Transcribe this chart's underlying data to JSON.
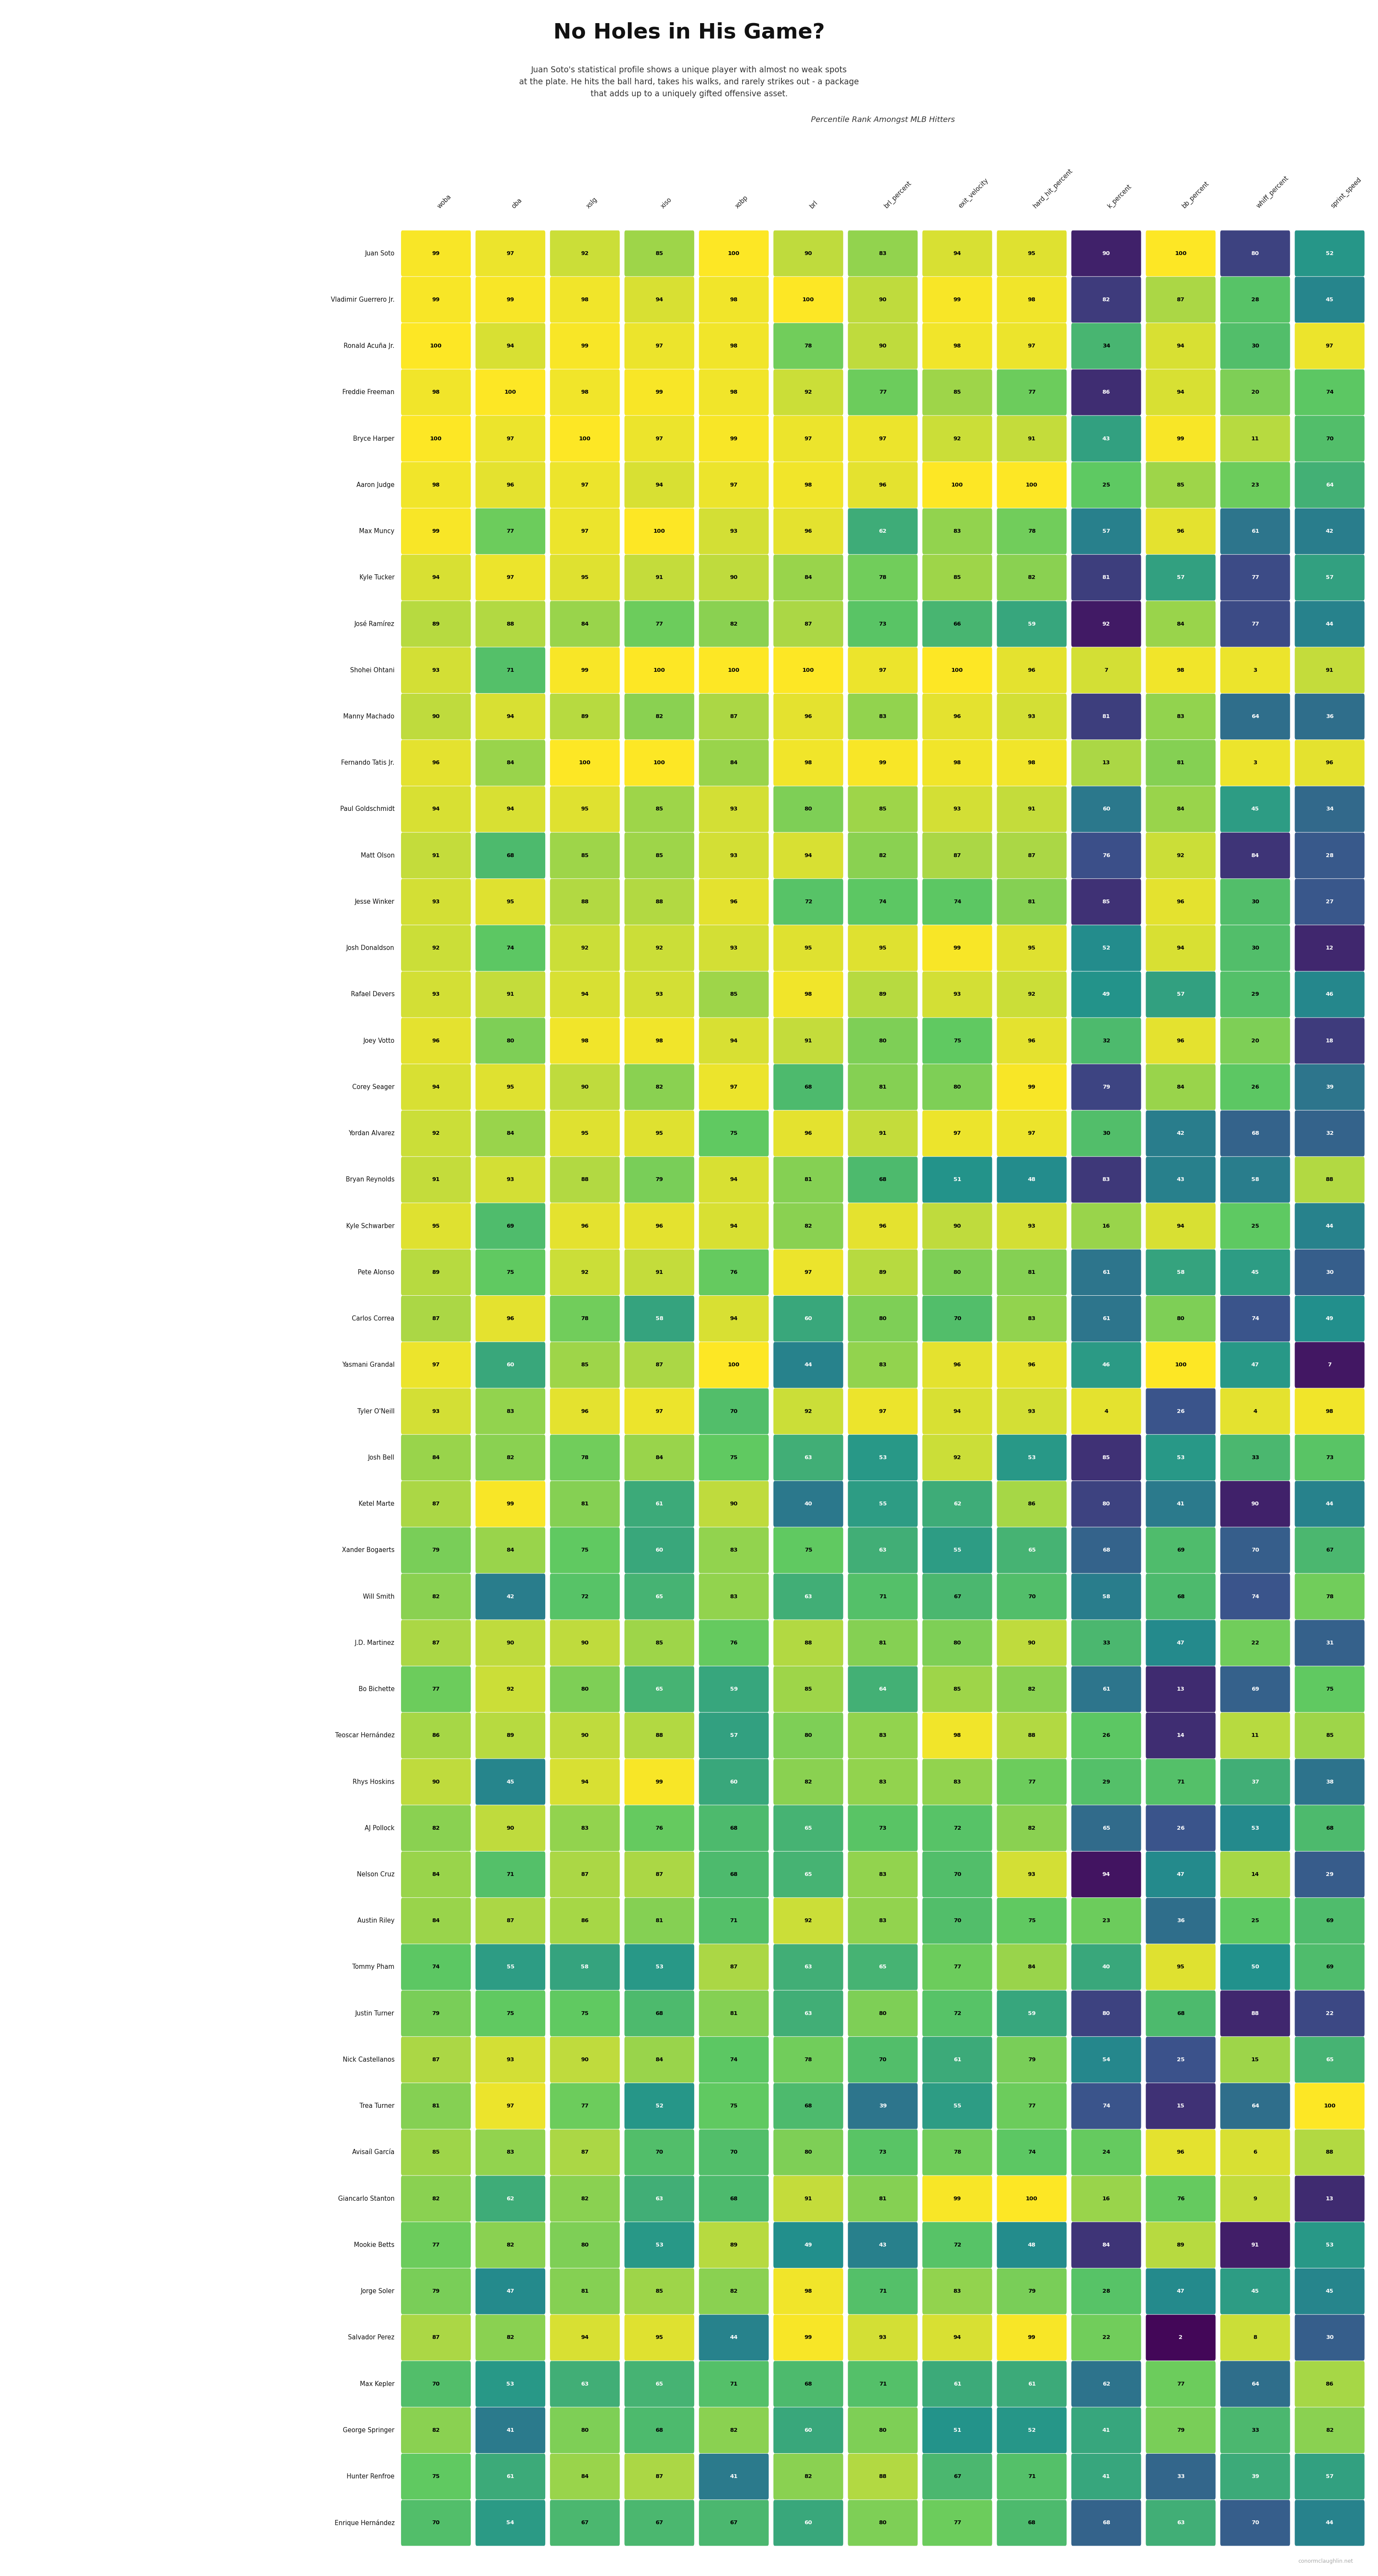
{
  "title": "No Holes in His Game?",
  "subtitle": "Juan Soto's statistical profile shows a unique player with almost no weak spots\nat the plate. He hits the ball hard, takes his walks, and rarely strikes out - a package\nthat adds up to a uniquely gifted offensive asset.",
  "col_header_label": "Percentile Rank Amongst MLB Hitters",
  "columns": [
    "woba",
    "oba",
    "xslg",
    "xiso",
    "xobp",
    "brl",
    "brl_percent",
    "exit_velocity",
    "hard_hit_percent",
    "k_percent",
    "bb_percent",
    "whiff_percent",
    "sprint_speed"
  ],
  "players": [
    "Juan Soto",
    "Vladimir Guerrero Jr.",
    "Ronald Acuña Jr.",
    "Freddie Freeman",
    "Bryce Harper",
    "Aaron Judge",
    "Max Muncy",
    "Kyle Tucker",
    "José Ramírez",
    "Shohei Ohtani",
    "Manny Machado",
    "Fernando Tatis Jr.",
    "Paul Goldschmidt",
    "Matt Olson",
    "Jesse Winker",
    "Josh Donaldson",
    "Rafael Devers",
    "Joey Votto",
    "Corey Seager",
    "Yordan Alvarez",
    "Bryan Reynolds",
    "Kyle Schwarber",
    "Pete Alonso",
    "Carlos Correa",
    "Yasmani Grandal",
    "Tyler O'Neill",
    "Josh Bell",
    "Ketel Marte",
    "Xander Bogaerts",
    "Will Smith",
    "J.D. Martinez",
    "Bo Bichette",
    "Teoscar Hernández",
    "Rhys Hoskins",
    "AJ Pollock",
    "Nelson Cruz",
    "Austin Riley",
    "Tommy Pham",
    "Justin Turner",
    "Nick Castellanos",
    "Trea Turner",
    "Avisaíl García",
    "Giancarlo Stanton",
    "Mookie Betts",
    "Jorge Soler",
    "Salvador Perez",
    "Max Kepler",
    "George Springer",
    "Hunter Renfroe",
    "Enrique Hernández"
  ],
  "data": [
    [
      99,
      97,
      92,
      85,
      100,
      90,
      83,
      94,
      95,
      90,
      100,
      80,
      52
    ],
    [
      99,
      99,
      98,
      94,
      98,
      100,
      90,
      99,
      98,
      82,
      87,
      28,
      45
    ],
    [
      100,
      94,
      99,
      97,
      98,
      78,
      90,
      98,
      97,
      34,
      94,
      30,
      97
    ],
    [
      98,
      100,
      98,
      99,
      98,
      92,
      77,
      85,
      77,
      86,
      94,
      20,
      74
    ],
    [
      100,
      97,
      100,
      97,
      99,
      97,
      97,
      92,
      91,
      43,
      99,
      11,
      70
    ],
    [
      98,
      96,
      97,
      94,
      97,
      98,
      96,
      100,
      100,
      25,
      85,
      23,
      64
    ],
    [
      99,
      77,
      97,
      100,
      93,
      96,
      62,
      83,
      78,
      57,
      96,
      61,
      42
    ],
    [
      94,
      97,
      95,
      91,
      90,
      84,
      78,
      85,
      82,
      81,
      57,
      77,
      57
    ],
    [
      89,
      88,
      84,
      77,
      82,
      87,
      73,
      66,
      59,
      92,
      84,
      77,
      44
    ],
    [
      93,
      71,
      99,
      100,
      100,
      100,
      97,
      100,
      96,
      7,
      98,
      3,
      91
    ],
    [
      90,
      94,
      89,
      82,
      87,
      96,
      83,
      96,
      93,
      81,
      83,
      64,
      36
    ],
    [
      96,
      84,
      100,
      100,
      84,
      98,
      99,
      98,
      98,
      13,
      81,
      3,
      96
    ],
    [
      94,
      94,
      95,
      85,
      93,
      80,
      85,
      93,
      91,
      60,
      84,
      45,
      34
    ],
    [
      91,
      68,
      85,
      85,
      93,
      94,
      82,
      87,
      87,
      76,
      92,
      84,
      28
    ],
    [
      93,
      95,
      88,
      88,
      96,
      72,
      74,
      74,
      81,
      85,
      96,
      30,
      27
    ],
    [
      92,
      74,
      92,
      92,
      93,
      95,
      95,
      99,
      95,
      52,
      94,
      30,
      12
    ],
    [
      93,
      91,
      94,
      93,
      85,
      98,
      89,
      93,
      92,
      49,
      57,
      29,
      46
    ],
    [
      96,
      80,
      98,
      98,
      94,
      91,
      80,
      75,
      96,
      32,
      96,
      20,
      18
    ],
    [
      94,
      95,
      90,
      82,
      97,
      68,
      81,
      80,
      99,
      79,
      84,
      26,
      39
    ],
    [
      92,
      84,
      95,
      95,
      75,
      96,
      91,
      97,
      97,
      30,
      42,
      68,
      32
    ],
    [
      91,
      93,
      88,
      79,
      94,
      81,
      68,
      51,
      48,
      83,
      43,
      58,
      88
    ],
    [
      95,
      69,
      96,
      96,
      94,
      82,
      96,
      90,
      93,
      16,
      94,
      25,
      44
    ],
    [
      89,
      75,
      92,
      91,
      76,
      97,
      89,
      80,
      81,
      61,
      58,
      45,
      30
    ],
    [
      87,
      96,
      78,
      58,
      94,
      60,
      80,
      70,
      83,
      61,
      80,
      74,
      49
    ],
    [
      97,
      60,
      85,
      87,
      100,
      44,
      83,
      96,
      96,
      46,
      100,
      47,
      7
    ],
    [
      93,
      83,
      96,
      97,
      70,
      92,
      97,
      94,
      93,
      4,
      26,
      4,
      98
    ],
    [
      84,
      82,
      78,
      84,
      75,
      63,
      53,
      92,
      53,
      85,
      53,
      33,
      73
    ],
    [
      87,
      99,
      81,
      61,
      90,
      40,
      55,
      62,
      86,
      80,
      41,
      90,
      44
    ],
    [
      79,
      84,
      75,
      60,
      83,
      75,
      63,
      55,
      65,
      68,
      69,
      70,
      67
    ],
    [
      82,
      42,
      72,
      65,
      83,
      63,
      71,
      67,
      70,
      58,
      68,
      74,
      78
    ],
    [
      87,
      90,
      90,
      85,
      76,
      88,
      81,
      80,
      90,
      33,
      47,
      22,
      31
    ],
    [
      77,
      92,
      80,
      65,
      59,
      85,
      64,
      85,
      82,
      61,
      13,
      69,
      75
    ],
    [
      86,
      89,
      90,
      88,
      57,
      80,
      83,
      98,
      88,
      26,
      14,
      11,
      85
    ],
    [
      90,
      45,
      94,
      99,
      60,
      82,
      83,
      83,
      77,
      29,
      71,
      37,
      38
    ],
    [
      82,
      90,
      83,
      76,
      68,
      65,
      73,
      72,
      82,
      65,
      26,
      53,
      68
    ],
    [
      84,
      71,
      87,
      87,
      68,
      65,
      83,
      70,
      93,
      94,
      47,
      14,
      29
    ],
    [
      84,
      87,
      86,
      81,
      71,
      92,
      83,
      70,
      75,
      23,
      36,
      25,
      69
    ],
    [
      74,
      55,
      58,
      53,
      87,
      63,
      65,
      77,
      84,
      40,
      95,
      50,
      69
    ],
    [
      79,
      75,
      75,
      68,
      81,
      63,
      80,
      72,
      59,
      80,
      68,
      88,
      22
    ],
    [
      87,
      93,
      90,
      84,
      74,
      78,
      70,
      61,
      79,
      54,
      25,
      15,
      65
    ],
    [
      81,
      97,
      77,
      52,
      75,
      68,
      39,
      55,
      77,
      74,
      15,
      64,
      100
    ],
    [
      85,
      83,
      87,
      70,
      70,
      80,
      73,
      78,
      74,
      24,
      96,
      6,
      88
    ],
    [
      82,
      62,
      82,
      63,
      68,
      91,
      81,
      99,
      100,
      16,
      76,
      9,
      13
    ],
    [
      77,
      82,
      80,
      53,
      89,
      49,
      43,
      72,
      48,
      84,
      89,
      91,
      53
    ],
    [
      79,
      47,
      81,
      85,
      82,
      98,
      71,
      83,
      79,
      28,
      47,
      45,
      45
    ],
    [
      87,
      82,
      94,
      95,
      44,
      99,
      93,
      94,
      99,
      22,
      2,
      8,
      30
    ],
    [
      70,
      53,
      63,
      65,
      71,
      68,
      71,
      61,
      61,
      62,
      77,
      64,
      86
    ],
    [
      82,
      41,
      80,
      68,
      82,
      60,
      80,
      51,
      52,
      41,
      79,
      33,
      82
    ],
    [
      75,
      61,
      84,
      87,
      41,
      82,
      88,
      67,
      71,
      41,
      33,
      39,
      57
    ],
    [
      70,
      54,
      67,
      67,
      67,
      60,
      80,
      77,
      68,
      68,
      63,
      70,
      44
    ]
  ],
  "background_color": "#ffffff",
  "watermark": "conormclaughlin.net",
  "inverted_cols": [
    "k_percent",
    "whiff_percent"
  ]
}
